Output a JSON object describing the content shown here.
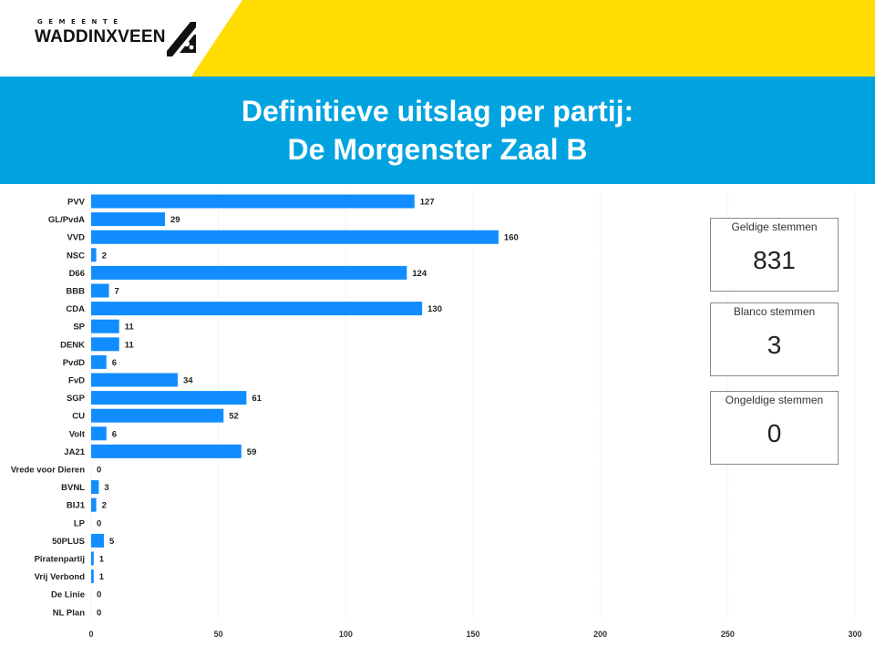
{
  "header": {
    "logo_small": "GEMEENTE",
    "logo_main": "WADDINXVEEN",
    "title_line1": "Definitieve uitslag per partij:",
    "title_line2": "De Morgenster Zaal B",
    "colors": {
      "yellow": "#ffdd00",
      "blue": "#00a3e0",
      "bar": "#118dff"
    }
  },
  "cards": [
    {
      "label": "Geldige stemmen",
      "value": "831"
    },
    {
      "label": "Blanco stemmen",
      "value": "3"
    },
    {
      "label": "Ongeldige stemmen",
      "value": "0"
    }
  ],
  "chart_data": {
    "type": "bar",
    "orientation": "horizontal",
    "categories": [
      "PVV",
      "GL/PvdA",
      "VVD",
      "NSC",
      "D66",
      "BBB",
      "CDA",
      "SP",
      "DENK",
      "PvdD",
      "FvD",
      "SGP",
      "CU",
      "Volt",
      "JA21",
      "Vrede voor Dieren",
      "BVNL",
      "BIJ1",
      "LP",
      "50PLUS",
      "Piratenpartij",
      "Vrij Verbond",
      "De Linie",
      "NL Plan"
    ],
    "values": [
      127,
      29,
      160,
      2,
      124,
      7,
      130,
      11,
      11,
      6,
      34,
      61,
      52,
      6,
      59,
      0,
      3,
      2,
      0,
      5,
      1,
      1,
      0,
      0
    ],
    "xlim": [
      0,
      300
    ],
    "xticks": [
      0,
      50,
      100,
      150,
      200,
      250,
      300
    ],
    "grid": true,
    "data_labels": true,
    "bar_color": "#118dff"
  }
}
